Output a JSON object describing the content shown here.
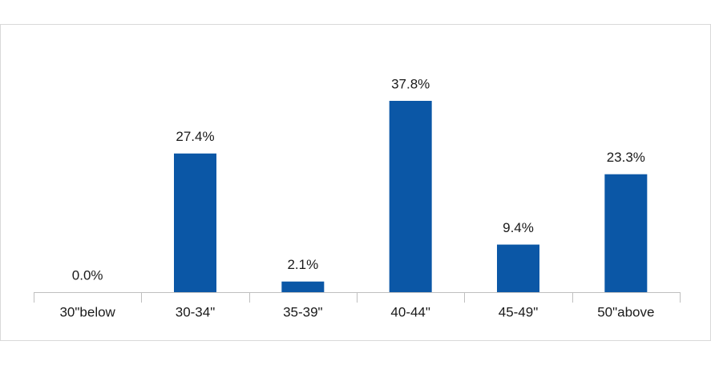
{
  "chart_data": {
    "type": "bar",
    "categories": [
      "30\"below",
      "30-34\"",
      "35-39\"",
      "40-44\"",
      "45-49\"",
      "50\"above"
    ],
    "values": [
      0,
      27.4,
      2.1,
      37.8,
      9.4,
      23.3
    ],
    "value_labels": [
      "0.0%",
      "27.4%",
      "2.1%",
      "37.8%",
      "9.4%",
      "23.3%"
    ],
    "color": "#0b57a6"
  }
}
